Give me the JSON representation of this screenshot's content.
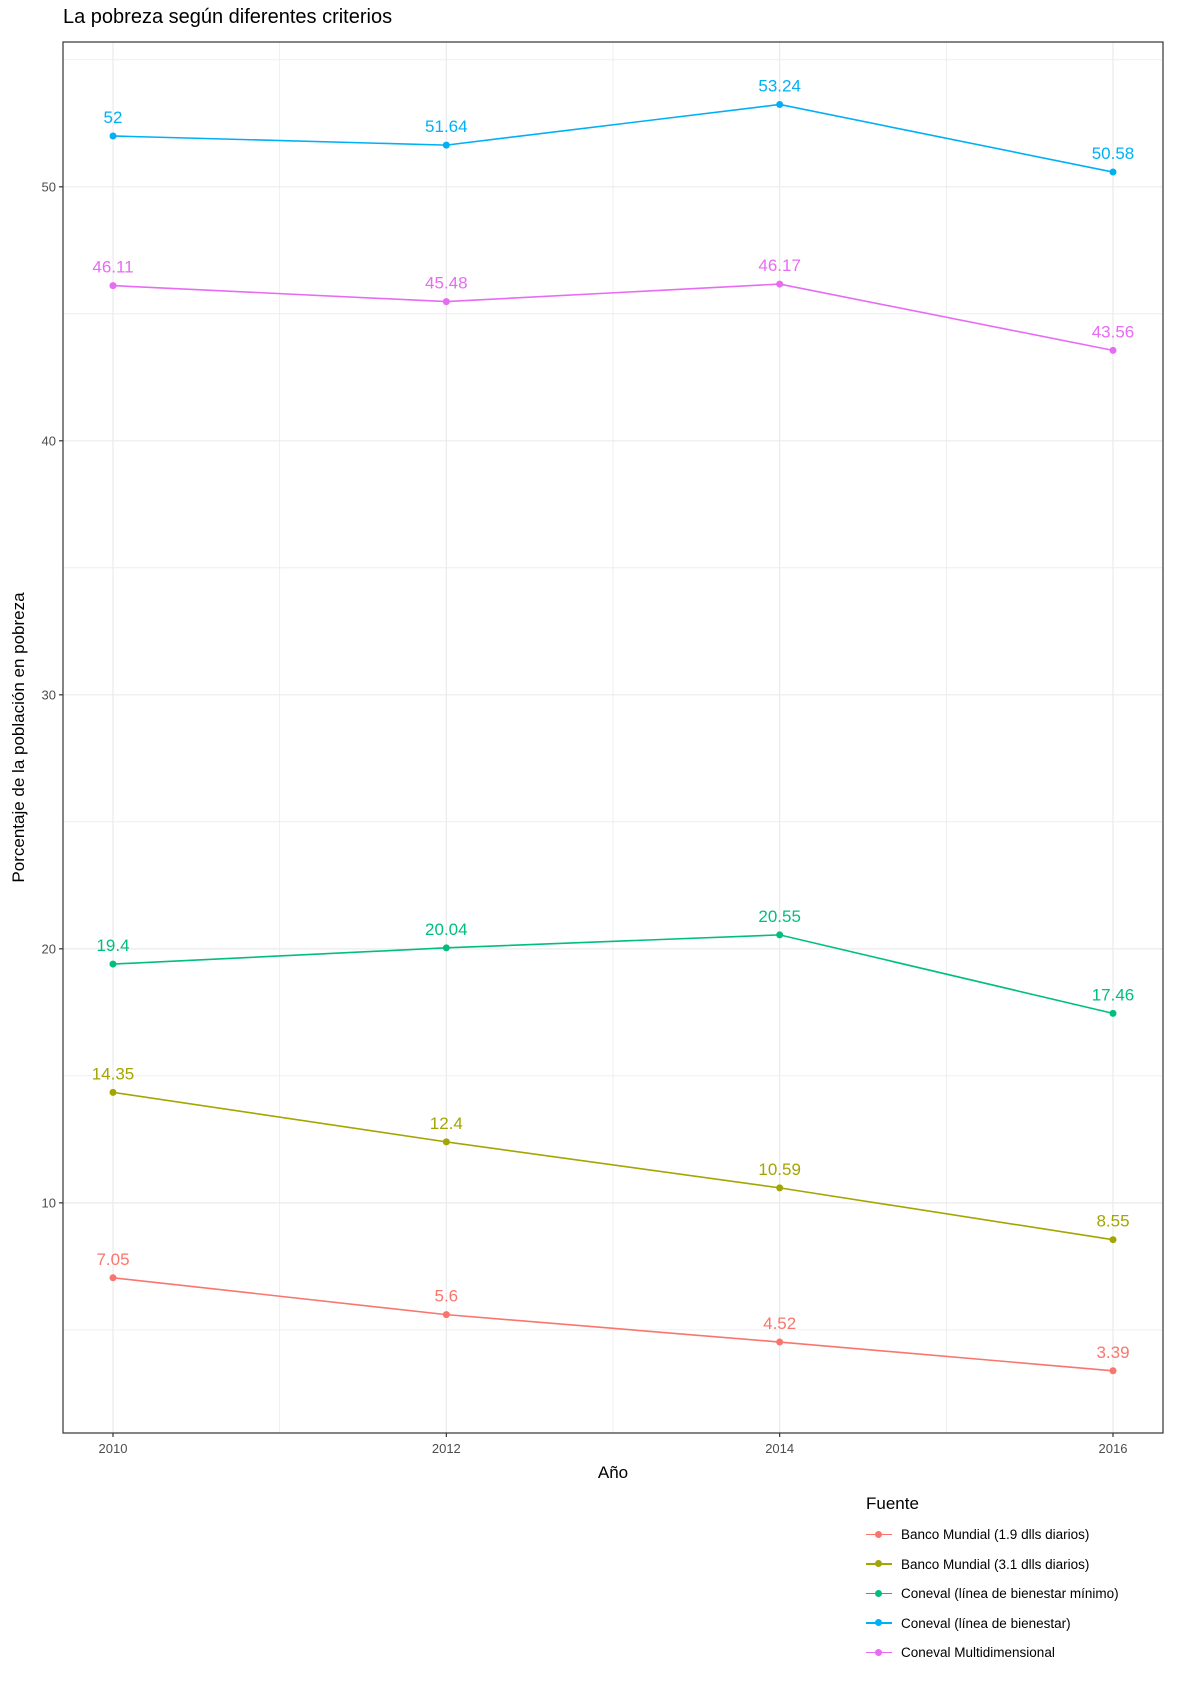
{
  "chart_data": {
    "type": "line",
    "title": "La pobreza según diferentes criterios",
    "xlabel": "Año",
    "ylabel": "Porcentaje de la población en pobreza",
    "x": [
      2010,
      2012,
      2014,
      2016
    ],
    "x_ticks": [
      "2010",
      "2012",
      "2014",
      "2016"
    ],
    "y_ticks": [
      "10",
      "20",
      "30",
      "40",
      "50"
    ],
    "xlim": [
      2009.7,
      2016.3
    ],
    "ylim": [
      0.94,
      55.7
    ],
    "grid": true,
    "legend_title": "Fuente",
    "legend_position": "bottom-right",
    "series": [
      {
        "name": "Banco Mundial (1.9 dlls diarios)",
        "color": "#F8766D",
        "values": [
          7.05,
          5.6,
          4.52,
          3.39
        ],
        "labels": [
          "7.05",
          "5.6",
          "4.52",
          "3.39"
        ]
      },
      {
        "name": "Banco Mundial (3.1 dlls diarios)",
        "color": "#A3A500",
        "values": [
          14.35,
          12.4,
          10.59,
          8.55
        ],
        "labels": [
          "14.35",
          "12.4",
          "10.59",
          "8.55"
        ]
      },
      {
        "name": "Coneval (línea de bienestar mínimo)",
        "color": "#00BF7D",
        "values": [
          19.4,
          20.04,
          20.55,
          17.46
        ],
        "labels": [
          "19.4",
          "20.04",
          "20.55",
          "17.46"
        ]
      },
      {
        "name": "Coneval (línea de bienestar)",
        "color": "#00B0F6",
        "values": [
          52,
          51.64,
          53.24,
          50.58
        ],
        "labels": [
          "52",
          "51.64",
          "53.24",
          "50.58"
        ]
      },
      {
        "name": "Coneval Multidimensional",
        "color": "#E76BF3",
        "values": [
          46.11,
          45.48,
          46.17,
          43.56
        ],
        "labels": [
          "46.11",
          "45.48",
          "46.17",
          "43.56"
        ]
      }
    ]
  }
}
